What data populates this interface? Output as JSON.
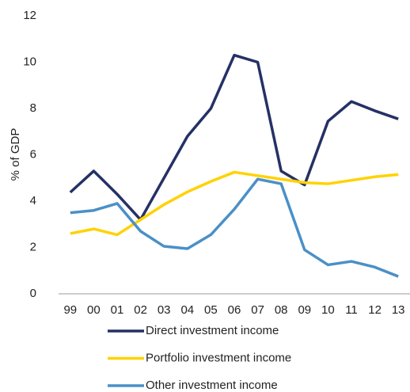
{
  "chart_data": {
    "type": "line",
    "y_label": "% of GDP",
    "categories": [
      "99",
      "00",
      "01",
      "02",
      "03",
      "04",
      "05",
      "06",
      "07",
      "08",
      "09",
      "10",
      "11",
      "12",
      "13"
    ],
    "series": [
      {
        "name": "Direct investment income",
        "color": "#253165",
        "values": [
          4.38,
          5.3,
          4.3,
          3.2,
          5.0,
          6.8,
          8.0,
          10.3,
          10.0,
          5.3,
          4.7,
          7.45,
          8.3,
          7.9,
          7.55
        ]
      },
      {
        "name": "Portfolio investment income",
        "color": "#ffd200",
        "values": [
          2.6,
          2.8,
          2.55,
          3.2,
          3.85,
          4.4,
          4.85,
          5.25,
          5.1,
          4.95,
          4.8,
          4.75,
          4.9,
          5.05,
          5.15
        ]
      },
      {
        "name": "Other investment income",
        "color": "#4a90c8",
        "values": [
          3.5,
          3.6,
          3.9,
          2.7,
          2.05,
          1.95,
          2.55,
          3.65,
          4.95,
          4.75,
          1.9,
          1.25,
          1.4,
          1.15,
          0.75
        ]
      }
    ],
    "ylim": [
      0,
      12
    ],
    "yticks": [
      0,
      2,
      4,
      6,
      8,
      10,
      12
    ],
    "grid": false
  }
}
